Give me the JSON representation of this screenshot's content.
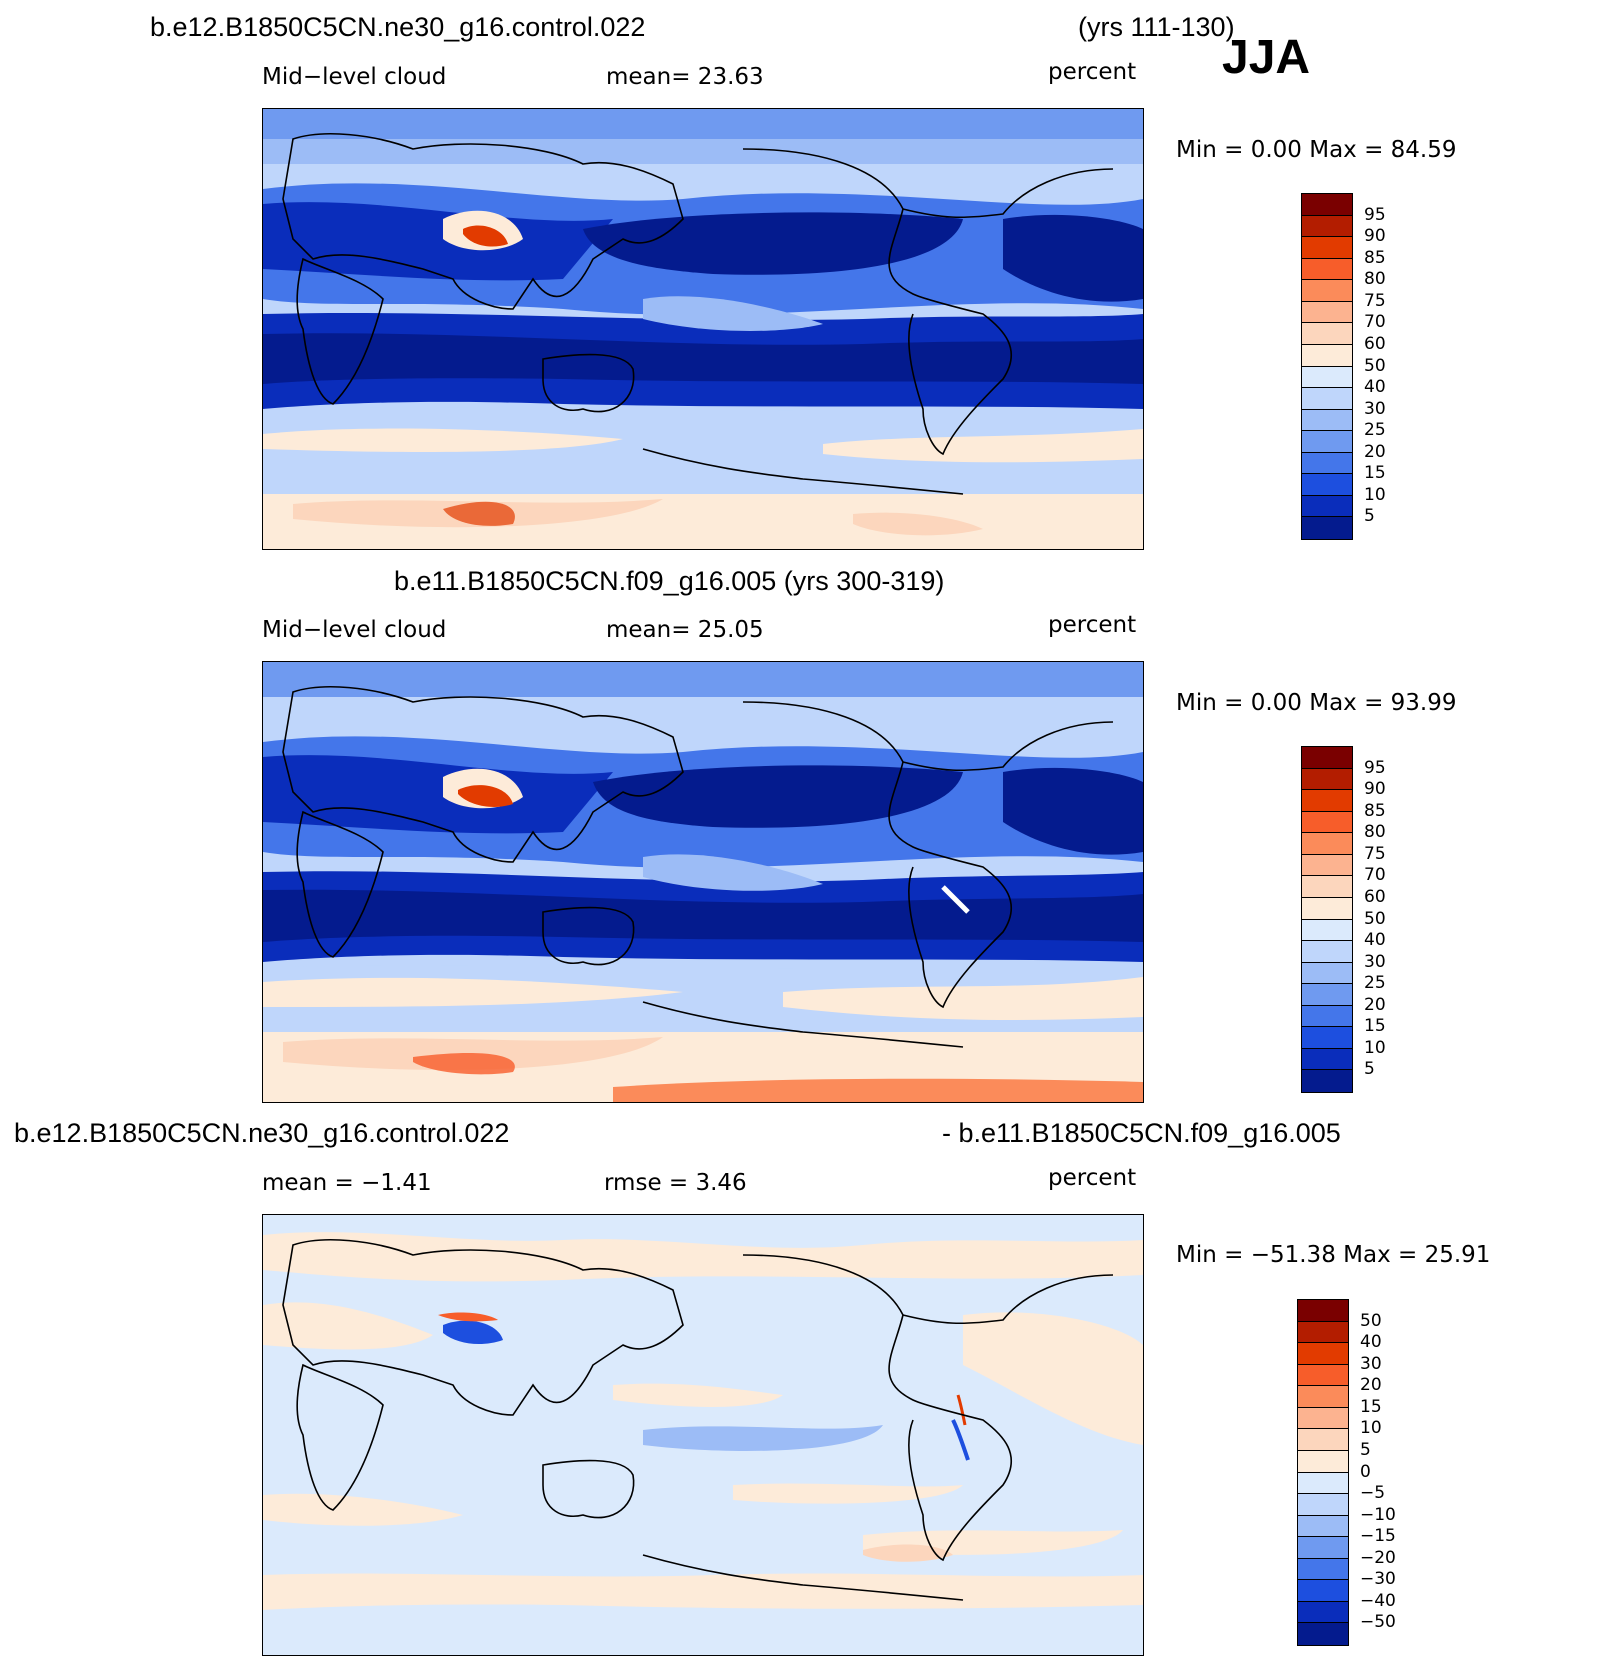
{
  "season": "JJA",
  "panels": [
    {
      "title_left": "b.e12.B1850C5CN.ne30_g16.control.022",
      "title_right": "(yrs 111-130)",
      "variable": "Mid−level cloud",
      "stat": "mean=   23.63",
      "units": "percent",
      "minmax": "Min =    0.00 Max =   84.59",
      "colorbar_labels": [
        "95",
        "90",
        "85",
        "80",
        "75",
        "70",
        "60",
        "50",
        "40",
        "30",
        "25",
        "20",
        "15",
        "10",
        "5"
      ],
      "colorbar_colors": [
        "#7a0000",
        "#b31d00",
        "#e23b00",
        "#f75d2a",
        "#fb8b5a",
        "#fcb390",
        "#fcd6bd",
        "#fdebd9",
        "#dbeafc",
        "#bfd6fb",
        "#9cbcf6",
        "#6f9af0",
        "#4476ea",
        "#1d4fdf",
        "#0a2dbb",
        "#041b8e"
      ]
    },
    {
      "title_left": "b.e11.B1850C5CN.f09_g16.005 (yrs 300-319)",
      "title_right": "",
      "variable": "Mid−level cloud",
      "stat": "mean=   25.05",
      "units": "percent",
      "minmax": "Min =    0.00 Max =   93.99",
      "colorbar_labels": [
        "95",
        "90",
        "85",
        "80",
        "75",
        "70",
        "60",
        "50",
        "40",
        "30",
        "25",
        "20",
        "15",
        "10",
        "5"
      ],
      "colorbar_colors": [
        "#7a0000",
        "#b31d00",
        "#e23b00",
        "#f75d2a",
        "#fb8b5a",
        "#fcb390",
        "#fcd6bd",
        "#fdebd9",
        "#dbeafc",
        "#bfd6fb",
        "#9cbcf6",
        "#6f9af0",
        "#4476ea",
        "#1d4fdf",
        "#0a2dbb",
        "#041b8e"
      ]
    },
    {
      "title_left": "b.e12.B1850C5CN.ne30_g16.control.022",
      "title_right": "- b.e11.B1850C5CN.f09_g16.005",
      "variable": "mean =   −1.41",
      "stat": "rmse =    3.46",
      "units": "percent",
      "minmax": "Min = −51.38 Max =   25.91",
      "colorbar_labels": [
        "50",
        "40",
        "30",
        "20",
        "15",
        "10",
        "5",
        "0",
        "−5",
        "−10",
        "−15",
        "−20",
        "−30",
        "−40",
        "−50"
      ],
      "colorbar_colors": [
        "#7a0000",
        "#b31d00",
        "#e23b00",
        "#f75d2a",
        "#fb8b5a",
        "#fcb390",
        "#fcd6bd",
        "#fdebd9",
        "#dbeafc",
        "#bfd6fb",
        "#9cbcf6",
        "#6f9af0",
        "#4476ea",
        "#1d4fdf",
        "#0a2dbb",
        "#041b8e"
      ]
    }
  ]
}
